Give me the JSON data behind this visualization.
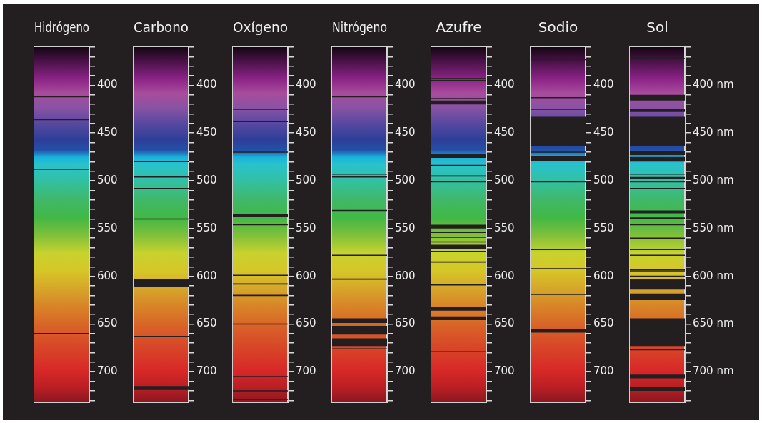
{
  "chart_data": [
    {
      "type": "scatter",
      "title": "Hidrógeno",
      "categories": [
        null
      ],
      "ylim": [
        732,
        360
      ],
      "yticks": [
        {
          "value": 360,
          "label": null
        },
        {
          "value": 370,
          "label": null
        },
        {
          "value": 380,
          "label": null
        },
        {
          "value": 390,
          "label": null
        },
        400,
        {
          "value": 410,
          "label": null
        },
        {
          "value": 420,
          "label": null
        },
        {
          "value": 430,
          "label": null
        },
        {
          "value": 440,
          "label": null
        },
        450,
        {
          "value": 460,
          "label": null
        },
        {
          "value": 470,
          "label": null
        },
        {
          "value": 480,
          "label": null
        },
        {
          "value": 490,
          "label": null
        },
        500,
        {
          "value": 510,
          "label": null
        },
        {
          "value": 520,
          "label": null
        },
        {
          "value": 530,
          "label": null
        },
        {
          "value": 540,
          "label": null
        },
        550,
        {
          "value": 560,
          "label": null
        },
        {
          "value": 570,
          "label": null
        },
        {
          "value": 580,
          "label": null
        },
        {
          "value": 590,
          "label": null
        },
        600,
        {
          "value": 610,
          "label": null
        },
        {
          "value": 620,
          "label": null
        },
        {
          "value": 630,
          "label": null
        },
        {
          "value": 640,
          "label": null
        },
        650,
        {
          "value": 660,
          "label": null
        },
        {
          "value": 670,
          "label": null
        },
        {
          "value": 680,
          "label": null
        },
        {
          "value": 690,
          "label": null
        },
        700,
        {
          "value": 710,
          "label": null
        },
        {
          "value": 720,
          "label": null
        },
        {
          "value": 730,
          "label": null
        }
      ],
      "ref_lines": [
        {
          "axis": "y",
          "value": 412
        },
        {
          "axis": "y",
          "value": 436
        },
        {
          "axis": "y",
          "value": 488
        },
        {
          "axis": "y",
          "value": 660
        }
      ]
    },
    {
      "type": "scatter",
      "title": "Carbono",
      "categories": [
        null
      ],
      "ylim": [
        732,
        360
      ],
      "yticks": [
        {
          "value": 360,
          "label": null
        },
        {
          "value": 370,
          "label": null
        },
        {
          "value": 380,
          "label": null
        },
        {
          "value": 390,
          "label": null
        },
        400,
        {
          "value": 410,
          "label": null
        },
        {
          "value": 420,
          "label": null
        },
        {
          "value": 430,
          "label": null
        },
        {
          "value": 440,
          "label": null
        },
        450,
        {
          "value": 460,
          "label": null
        },
        {
          "value": 470,
          "label": null
        },
        {
          "value": 480,
          "label": null
        },
        {
          "value": 490,
          "label": null
        },
        500,
        {
          "value": 510,
          "label": null
        },
        {
          "value": 520,
          "label": null
        },
        {
          "value": 530,
          "label": null
        },
        {
          "value": 540,
          "label": null
        },
        550,
        {
          "value": 560,
          "label": null
        },
        {
          "value": 570,
          "label": null
        },
        {
          "value": 580,
          "label": null
        },
        {
          "value": 590,
          "label": null
        },
        600,
        {
          "value": 610,
          "label": null
        },
        {
          "value": 620,
          "label": null
        },
        {
          "value": 630,
          "label": null
        },
        {
          "value": 640,
          "label": null
        },
        650,
        {
          "value": 660,
          "label": null
        },
        {
          "value": 670,
          "label": null
        },
        {
          "value": 680,
          "label": null
        },
        {
          "value": 690,
          "label": null
        },
        700,
        {
          "value": 710,
          "label": null
        },
        {
          "value": 720,
          "label": null
        },
        {
          "value": 730,
          "label": null
        }
      ],
      "ref_lines": [
        {
          "axis": "y",
          "value": 480
        },
        {
          "axis": "y",
          "value": 496
        },
        {
          "axis": "y",
          "value": 508
        },
        {
          "axis": "y",
          "value": 540
        },
        {
          "axis": "y",
          "value": 663
        }
      ],
      "bands": [
        {
          "axis": "y",
          "from": 603,
          "to": 611
        },
        {
          "axis": "y",
          "from": 715,
          "to": 719
        }
      ]
    },
    {
      "type": "scatter",
      "title": "Oxígeno",
      "categories": [
        null
      ],
      "ylim": [
        732,
        360
      ],
      "yticks": [
        {
          "value": 360,
          "label": null
        },
        {
          "value": 370,
          "label": null
        },
        {
          "value": 380,
          "label": null
        },
        {
          "value": 390,
          "label": null
        },
        400,
        {
          "value": 410,
          "label": null
        },
        {
          "value": 420,
          "label": null
        },
        {
          "value": 430,
          "label": null
        },
        {
          "value": 440,
          "label": null
        },
        450,
        {
          "value": 460,
          "label": null
        },
        {
          "value": 470,
          "label": null
        },
        {
          "value": 480,
          "label": null
        },
        {
          "value": 490,
          "label": null
        },
        500,
        {
          "value": 510,
          "label": null
        },
        {
          "value": 520,
          "label": null
        },
        {
          "value": 530,
          "label": null
        },
        {
          "value": 540,
          "label": null
        },
        550,
        {
          "value": 560,
          "label": null
        },
        {
          "value": 570,
          "label": null
        },
        {
          "value": 580,
          "label": null
        },
        {
          "value": 590,
          "label": null
        },
        600,
        {
          "value": 610,
          "label": null
        },
        {
          "value": 620,
          "label": null
        },
        {
          "value": 630,
          "label": null
        },
        {
          "value": 640,
          "label": null
        },
        650,
        {
          "value": 660,
          "label": null
        },
        {
          "value": 670,
          "label": null
        },
        {
          "value": 680,
          "label": null
        },
        {
          "value": 690,
          "label": null
        },
        700,
        {
          "value": 710,
          "label": null
        },
        {
          "value": 720,
          "label": null
        },
        {
          "value": 730,
          "label": null
        }
      ],
      "ref_lines": [
        {
          "axis": "y",
          "value": 425
        },
        {
          "axis": "y",
          "value": 438
        },
        {
          "axis": "y",
          "value": 470
        },
        {
          "axis": "y",
          "value": 546
        },
        {
          "axis": "y",
          "value": 599
        },
        {
          "axis": "y",
          "value": 608
        },
        {
          "axis": "y",
          "value": 620
        },
        {
          "axis": "y",
          "value": 650
        },
        {
          "axis": "y",
          "value": 705
        },
        {
          "axis": "y",
          "value": 720
        },
        {
          "axis": "y",
          "value": 729
        }
      ],
      "bands": [
        {
          "axis": "y",
          "from": 535,
          "to": 538
        }
      ]
    },
    {
      "type": "scatter",
      "title": "Nitrógeno",
      "categories": [
        null
      ],
      "ylim": [
        732,
        360
      ],
      "yticks": [
        {
          "value": 360,
          "label": null
        },
        {
          "value": 370,
          "label": null
        },
        {
          "value": 380,
          "label": null
        },
        {
          "value": 390,
          "label": null
        },
        400,
        {
          "value": 410,
          "label": null
        },
        {
          "value": 420,
          "label": null
        },
        {
          "value": 430,
          "label": null
        },
        {
          "value": 440,
          "label": null
        },
        450,
        {
          "value": 460,
          "label": null
        },
        {
          "value": 470,
          "label": null
        },
        {
          "value": 480,
          "label": null
        },
        {
          "value": 490,
          "label": null
        },
        500,
        {
          "value": 510,
          "label": null
        },
        {
          "value": 520,
          "label": null
        },
        {
          "value": 530,
          "label": null
        },
        {
          "value": 540,
          "label": null
        },
        550,
        {
          "value": 560,
          "label": null
        },
        {
          "value": 570,
          "label": null
        },
        {
          "value": 580,
          "label": null
        },
        {
          "value": 590,
          "label": null
        },
        600,
        {
          "value": 610,
          "label": null
        },
        {
          "value": 620,
          "label": null
        },
        {
          "value": 630,
          "label": null
        },
        {
          "value": 640,
          "label": null
        },
        650,
        {
          "value": 660,
          "label": null
        },
        {
          "value": 670,
          "label": null
        },
        {
          "value": 680,
          "label": null
        },
        {
          "value": 690,
          "label": null
        },
        700,
        {
          "value": 710,
          "label": null
        },
        {
          "value": 720,
          "label": null
        },
        {
          "value": 730,
          "label": null
        }
      ],
      "ref_lines": [
        {
          "axis": "y",
          "value": 412
        },
        {
          "axis": "y",
          "value": 493
        },
        {
          "axis": "y",
          "value": 496
        },
        {
          "axis": "y",
          "value": 531
        },
        {
          "axis": "y",
          "value": 578
        },
        {
          "axis": "y",
          "value": 603
        },
        {
          "axis": "y",
          "value": 676
        }
      ],
      "bands": [
        {
          "axis": "y",
          "from": 644,
          "to": 649
        },
        {
          "axis": "y",
          "from": 652,
          "to": 661
        },
        {
          "axis": "y",
          "from": 665,
          "to": 673
        }
      ]
    },
    {
      "type": "scatter",
      "title": "Azufre",
      "categories": [
        null
      ],
      "ylim": [
        732,
        360
      ],
      "yticks": [
        {
          "value": 360,
          "label": null
        },
        {
          "value": 370,
          "label": null
        },
        {
          "value": 380,
          "label": null
        },
        {
          "value": 390,
          "label": null
        },
        400,
        {
          "value": 410,
          "label": null
        },
        {
          "value": 420,
          "label": null
        },
        {
          "value": 430,
          "label": null
        },
        {
          "value": 440,
          "label": null
        },
        450,
        {
          "value": 460,
          "label": null
        },
        {
          "value": 470,
          "label": null
        },
        {
          "value": 480,
          "label": null
        },
        {
          "value": 490,
          "label": null
        },
        500,
        {
          "value": 510,
          "label": null
        },
        {
          "value": 520,
          "label": null
        },
        {
          "value": 530,
          "label": null
        },
        {
          "value": 540,
          "label": null
        },
        550,
        {
          "value": 560,
          "label": null
        },
        {
          "value": 570,
          "label": null
        },
        {
          "value": 580,
          "label": null
        },
        {
          "value": 590,
          "label": null
        },
        600,
        {
          "value": 610,
          "label": null
        },
        {
          "value": 620,
          "label": null
        },
        {
          "value": 630,
          "label": null
        },
        {
          "value": 640,
          "label": null
        },
        650,
        {
          "value": 660,
          "label": null
        },
        {
          "value": 670,
          "label": null
        },
        {
          "value": 680,
          "label": null
        },
        {
          "value": 690,
          "label": null
        },
        700,
        {
          "value": 710,
          "label": null
        },
        {
          "value": 720,
          "label": null
        },
        {
          "value": 730,
          "label": null
        }
      ],
      "ref_lines": [
        {
          "axis": "y",
          "value": 393
        },
        {
          "axis": "y",
          "value": 395
        },
        {
          "axis": "y",
          "value": 414
        },
        {
          "axis": "y",
          "value": 484
        },
        {
          "axis": "y",
          "value": 495
        },
        {
          "axis": "y",
          "value": 501
        },
        {
          "axis": "y",
          "value": 554
        },
        {
          "axis": "y",
          "value": 559
        },
        {
          "axis": "y",
          "value": 564
        },
        {
          "axis": "y",
          "value": 574
        },
        {
          "axis": "y",
          "value": 585
        },
        {
          "axis": "y",
          "value": 609
        },
        {
          "axis": "y",
          "value": 679
        }
      ],
      "bands": [
        {
          "axis": "y",
          "from": 416,
          "to": 420
        },
        {
          "axis": "y",
          "from": 472,
          "to": 476
        },
        {
          "axis": "y",
          "from": 546,
          "to": 550
        },
        {
          "axis": "y",
          "from": 567,
          "to": 571
        },
        {
          "axis": "y",
          "from": 632,
          "to": 636
        },
        {
          "axis": "y",
          "from": 642,
          "to": 646
        }
      ]
    },
    {
      "type": "scatter",
      "title": "Sodio",
      "categories": [
        null
      ],
      "ylim": [
        732,
        360
      ],
      "yticks": [
        {
          "value": 360,
          "label": null
        },
        {
          "value": 370,
          "label": null
        },
        {
          "value": 380,
          "label": null
        },
        {
          "value": 390,
          "label": null
        },
        400,
        {
          "value": 410,
          "label": null
        },
        {
          "value": 420,
          "label": null
        },
        {
          "value": 430,
          "label": null
        },
        {
          "value": 440,
          "label": null
        },
        450,
        {
          "value": 460,
          "label": null
        },
        {
          "value": 470,
          "label": null
        },
        {
          "value": 480,
          "label": null
        },
        {
          "value": 490,
          "label": null
        },
        500,
        {
          "value": 510,
          "label": null
        },
        {
          "value": 520,
          "label": null
        },
        {
          "value": 530,
          "label": null
        },
        {
          "value": 540,
          "label": null
        },
        550,
        {
          "value": 560,
          "label": null
        },
        {
          "value": 570,
          "label": null
        },
        {
          "value": 580,
          "label": null
        },
        {
          "value": 590,
          "label": null
        },
        600,
        {
          "value": 610,
          "label": null
        },
        {
          "value": 620,
          "label": null
        },
        {
          "value": 630,
          "label": null
        },
        {
          "value": 640,
          "label": null
        },
        650,
        {
          "value": 660,
          "label": null
        },
        {
          "value": 670,
          "label": null
        },
        {
          "value": 680,
          "label": null
        },
        {
          "value": 690,
          "label": null
        },
        700,
        {
          "value": 710,
          "label": null
        },
        {
          "value": 720,
          "label": null
        },
        {
          "value": 730,
          "label": null
        }
      ],
      "ref_lines": [
        {
          "axis": "y",
          "value": 373
        },
        {
          "axis": "y",
          "value": 413
        },
        {
          "axis": "y",
          "value": 425
        },
        {
          "axis": "y",
          "value": 470
        },
        {
          "axis": "y",
          "value": 501
        },
        {
          "axis": "y",
          "value": 572
        },
        {
          "axis": "y",
          "value": 592
        },
        {
          "axis": "y",
          "value": 619
        }
      ],
      "bands": [
        {
          "axis": "y",
          "from": 433,
          "to": 464
        },
        {
          "axis": "y",
          "from": 474,
          "to": 479
        },
        {
          "axis": "y",
          "from": 655,
          "to": 659
        }
      ]
    },
    {
      "type": "scatter",
      "title": "Sol",
      "categories": [
        null
      ],
      "ylim": [
        732,
        360
      ],
      "yticks": [
        {
          "value": 360,
          "label": null
        },
        {
          "value": 370,
          "label": null
        },
        {
          "value": 380,
          "label": null
        },
        {
          "value": 390,
          "label": null
        },
        {
          "value": 400,
          "label": "400 nm"
        },
        {
          "value": 410,
          "label": null
        },
        {
          "value": 420,
          "label": null
        },
        {
          "value": 430,
          "label": null
        },
        {
          "value": 440,
          "label": null
        },
        {
          "value": 450,
          "label": "450 nm"
        },
        {
          "value": 460,
          "label": null
        },
        {
          "value": 470,
          "label": null
        },
        {
          "value": 480,
          "label": null
        },
        {
          "value": 490,
          "label": null
        },
        {
          "value": 500,
          "label": "500 nm"
        },
        {
          "value": 510,
          "label": null
        },
        {
          "value": 520,
          "label": null
        },
        {
          "value": 530,
          "label": null
        },
        {
          "value": 540,
          "label": null
        },
        {
          "value": 550,
          "label": "550 nm"
        },
        {
          "value": 560,
          "label": null
        },
        {
          "value": 570,
          "label": null
        },
        {
          "value": 580,
          "label": null
        },
        {
          "value": 590,
          "label": null
        },
        {
          "value": 600,
          "label": "600 nm"
        },
        {
          "value": 610,
          "label": null
        },
        {
          "value": 620,
          "label": null
        },
        {
          "value": 630,
          "label": null
        },
        {
          "value": 640,
          "label": null
        },
        {
          "value": 650,
          "label": "650 nm"
        },
        {
          "value": 660,
          "label": null
        },
        {
          "value": 670,
          "label": null
        },
        {
          "value": 680,
          "label": null
        },
        {
          "value": 690,
          "label": null
        },
        {
          "value": 700,
          "label": "700 nm"
        },
        {
          "value": 710,
          "label": null
        },
        {
          "value": 720,
          "label": null
        },
        {
          "value": 730,
          "label": null
        }
      ],
      "ref_lines": [
        {
          "axis": "y",
          "value": 372
        },
        {
          "axis": "y",
          "value": 493
        },
        {
          "axis": "y",
          "value": 501
        },
        {
          "axis": "y",
          "value": 508
        },
        {
          "axis": "y",
          "value": 539
        },
        {
          "axis": "y",
          "value": 546
        },
        {
          "axis": "y",
          "value": 560
        },
        {
          "axis": "y",
          "value": 572
        },
        {
          "axis": "y",
          "value": 578
        },
        {
          "axis": "y",
          "value": 595
        },
        {
          "axis": "y",
          "value": 600
        },
        {
          "axis": "y",
          "value": 677
        }
      ],
      "bands": [
        {
          "axis": "y",
          "from": 410,
          "to": 416
        },
        {
          "axis": "y",
          "from": 425,
          "to": 428
        },
        {
          "axis": "y",
          "from": 433,
          "to": 464
        },
        {
          "axis": "y",
          "from": 469,
          "to": 473
        },
        {
          "axis": "y",
          "from": 475,
          "to": 480
        },
        {
          "axis": "y",
          "from": 496,
          "to": 498
        },
        {
          "axis": "y",
          "from": 531,
          "to": 534
        },
        {
          "axis": "y",
          "from": 592,
          "to": 594
        },
        {
          "axis": "y",
          "from": 603,
          "to": 614
        },
        {
          "axis": "y",
          "from": 618,
          "to": 625
        },
        {
          "axis": "y",
          "from": 644,
          "to": 673
        },
        {
          "axis": "y",
          "from": 703,
          "to": 707
        },
        {
          "axis": "y",
          "from": 716,
          "to": 720
        }
      ]
    }
  ]
}
